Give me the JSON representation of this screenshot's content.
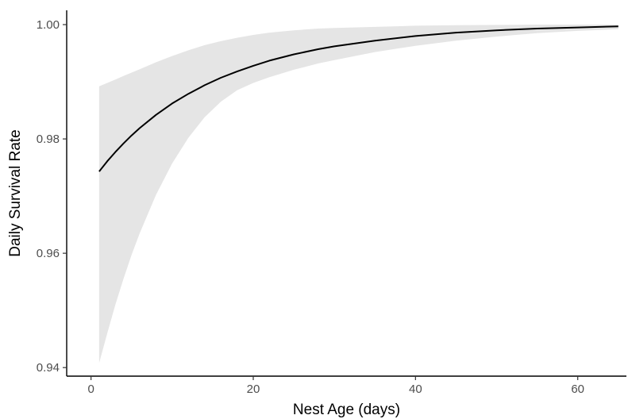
{
  "chart_data": {
    "type": "line",
    "title": "",
    "xlabel": "Nest Age (days)",
    "ylabel": "Daily Survival Rate",
    "xlim": [
      -3,
      66
    ],
    "ylim": [
      0.9385,
      1.0025
    ],
    "x_ticks": [
      0,
      20,
      40,
      60
    ],
    "x_tick_labels": [
      "0",
      "20",
      "40",
      "60"
    ],
    "y_ticks": [
      0.94,
      0.96,
      0.98,
      1.0
    ],
    "y_tick_labels": [
      "0.94",
      "0.96",
      "0.98",
      "1.00"
    ],
    "grid": false,
    "legend": "none",
    "series": [
      {
        "kind": "line",
        "color": "#000000",
        "x": [
          1,
          2,
          3,
          4,
          5,
          6,
          8,
          10,
          12,
          14,
          16,
          18,
          20,
          22,
          25,
          28,
          30,
          35,
          40,
          45,
          50,
          55,
          60,
          65
        ],
        "y": [
          0.9743,
          0.9761,
          0.9777,
          0.9792,
          0.9806,
          0.9819,
          0.9842,
          0.9862,
          0.9879,
          0.9894,
          0.9907,
          0.9918,
          0.9928,
          0.9937,
          0.9948,
          0.9957,
          0.9962,
          0.9972,
          0.998,
          0.9986,
          0.999,
          0.9993,
          0.9995,
          0.9997
        ]
      },
      {
        "kind": "ribbon",
        "color": "#e5e5e5",
        "x": [
          1,
          2,
          3,
          4,
          5,
          6,
          8,
          10,
          12,
          14,
          16,
          18,
          20,
          22,
          25,
          28,
          30,
          35,
          40,
          45,
          50,
          55,
          60,
          65
        ],
        "lower": [
          0.9408,
          0.946,
          0.951,
          0.9555,
          0.9597,
          0.9635,
          0.9702,
          0.9757,
          0.9802,
          0.9838,
          0.9865,
          0.9885,
          0.9898,
          0.9908,
          0.9921,
          0.9932,
          0.9938,
          0.9952,
          0.9963,
          0.9972,
          0.9979,
          0.9985,
          0.9989,
          0.9992
        ],
        "upper": [
          0.9892,
          0.9898,
          0.9904,
          0.991,
          0.9916,
          0.9922,
          0.9934,
          0.9945,
          0.9955,
          0.9964,
          0.9971,
          0.9977,
          0.9982,
          0.9986,
          0.999,
          0.9993,
          0.9994,
          0.9996,
          0.9998,
          0.9999,
          0.99995,
          1.0,
          1.0,
          1.0
        ]
      }
    ]
  }
}
